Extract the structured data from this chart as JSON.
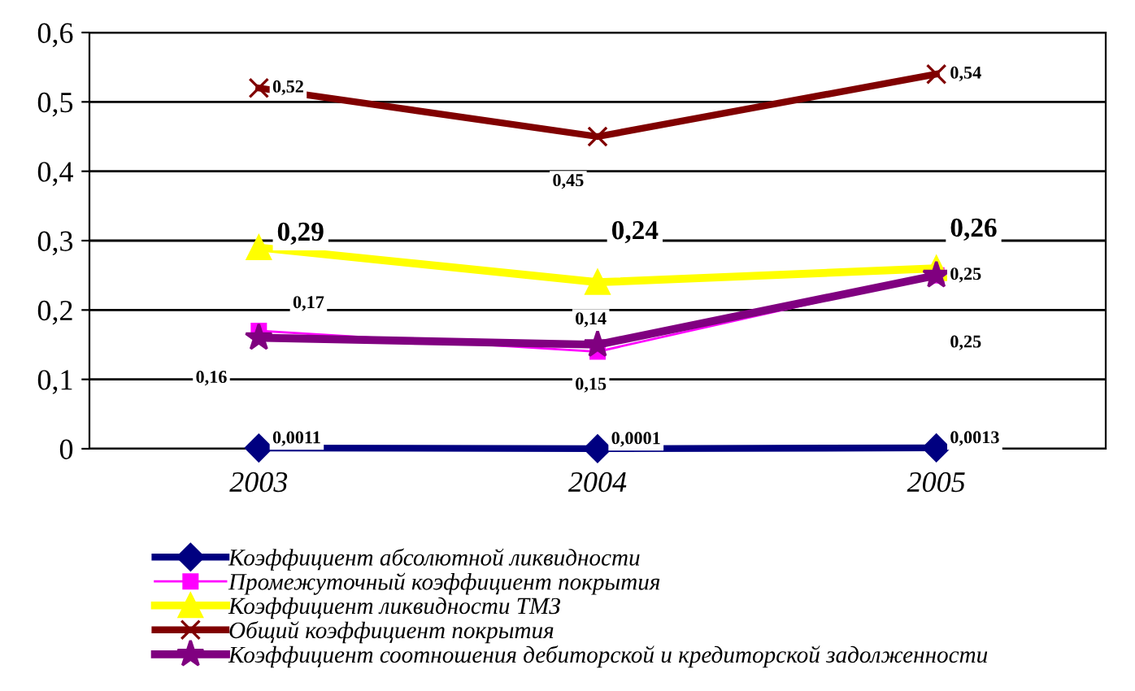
{
  "chart_data": {
    "type": "line",
    "categories": [
      "2003",
      "2004",
      "2005"
    ],
    "ylim": [
      0,
      0.6
    ],
    "yticks": [
      {
        "value": 0,
        "label": "0"
      },
      {
        "value": 0.1,
        "label": "0,1"
      },
      {
        "value": 0.2,
        "label": "0,2"
      },
      {
        "value": 0.3,
        "label": "0,3"
      },
      {
        "value": 0.4,
        "label": "0,4"
      },
      {
        "value": 0.5,
        "label": "0,5"
      },
      {
        "value": 0.6,
        "label": "0,6"
      }
    ],
    "grid": "y",
    "legend": "bottom",
    "series": [
      {
        "name": "Коэффициент абсолютной ликвидности",
        "color": "#000080",
        "marker": "diamond",
        "values": [
          0.0011,
          0.0001,
          0.0013
        ],
        "value_labels": [
          "0,0011",
          "0,0001",
          "0,0013"
        ]
      },
      {
        "name": "Промежуточный коэффициент покрытия",
        "color": "#ff00ff",
        "marker": "square",
        "values": [
          0.17,
          0.14,
          0.25
        ],
        "value_labels": [
          "0,17",
          "0,14",
          "0,25"
        ]
      },
      {
        "name": "Коэффициент ликвидности ТМЗ",
        "color": "#ffff00",
        "marker": "triangle",
        "values": [
          0.29,
          0.24,
          0.26
        ],
        "value_labels": [
          "0,29",
          "0,24",
          "0,26"
        ]
      },
      {
        "name": "Общий коэффициент покрытия",
        "color": "#800000",
        "marker": "cross",
        "values": [
          0.52,
          0.45,
          0.54
        ],
        "value_labels": [
          "0,52",
          "0,45",
          "0,54"
        ]
      },
      {
        "name": "Коэффициент соотношения дебиторской и кредиторской задолженности",
        "color": "#800080",
        "marker": "star",
        "values": [
          0.16,
          0.15,
          0.25
        ],
        "value_labels": [
          "0,16",
          "0,15",
          "0,25"
        ]
      }
    ]
  }
}
